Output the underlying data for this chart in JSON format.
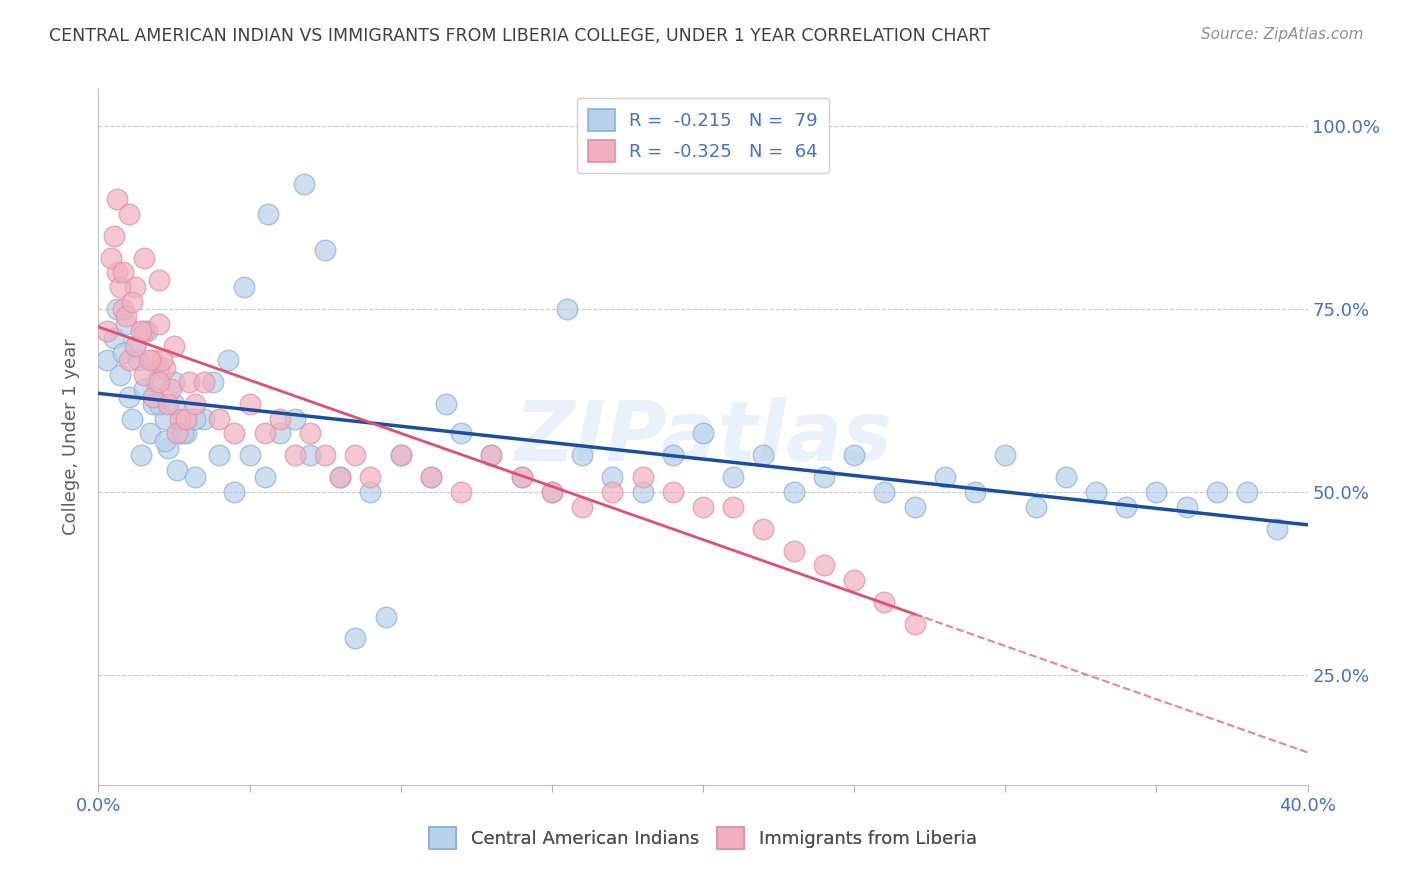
{
  "title": "CENTRAL AMERICAN INDIAN VS IMMIGRANTS FROM LIBERIA COLLEGE, UNDER 1 YEAR CORRELATION CHART",
  "source": "Source: ZipAtlas.com",
  "legend_label1": "Central American Indians",
  "legend_label2": "Immigrants from Liberia",
  "R1": -0.215,
  "N1": 79,
  "R2": -0.325,
  "N2": 64,
  "color_blue_fill": "#b8d0ea",
  "color_blue_edge": "#8ab0d8",
  "color_pink_fill": "#f0b0c0",
  "color_pink_edge": "#e090a8",
  "color_blue_line": "#1a4fa0",
  "color_pink_line": "#e05070",
  "watermark": "ZIPatlas",
  "xlim": [
    0.0,
    0.4
  ],
  "ylim": [
    0.1,
    1.05
  ],
  "background_color": "#ffffff",
  "grid_color": "#c8c8d8",
  "title_color": "#404040",
  "axis_label_color": "#4472c4",
  "ylabel": "College, Under 1 year",
  "blue_points_x": [
    0.003,
    0.007,
    0.01,
    0.012,
    0.015,
    0.018,
    0.02,
    0.022,
    0.025,
    0.027,
    0.005,
    0.008,
    0.011,
    0.014,
    0.017,
    0.02,
    0.023,
    0.026,
    0.029,
    0.032,
    0.035,
    0.04,
    0.045,
    0.05,
    0.055,
    0.06,
    0.065,
    0.07,
    0.08,
    0.09,
    0.1,
    0.11,
    0.12,
    0.13,
    0.14,
    0.15,
    0.16,
    0.17,
    0.18,
    0.19,
    0.2,
    0.21,
    0.22,
    0.23,
    0.24,
    0.25,
    0.26,
    0.27,
    0.28,
    0.29,
    0.3,
    0.31,
    0.32,
    0.33,
    0.34,
    0.35,
    0.36,
    0.37,
    0.38,
    0.39,
    0.006,
    0.009,
    0.013,
    0.016,
    0.019,
    0.022,
    0.025,
    0.028,
    0.032,
    0.038,
    0.043,
    0.048,
    0.056,
    0.068,
    0.075,
    0.085,
    0.095,
    0.115,
    0.155
  ],
  "blue_points_y": [
    0.68,
    0.66,
    0.63,
    0.7,
    0.64,
    0.62,
    0.67,
    0.6,
    0.65,
    0.58,
    0.71,
    0.69,
    0.6,
    0.55,
    0.58,
    0.62,
    0.56,
    0.53,
    0.58,
    0.52,
    0.6,
    0.55,
    0.5,
    0.55,
    0.52,
    0.58,
    0.6,
    0.55,
    0.52,
    0.5,
    0.55,
    0.52,
    0.58,
    0.55,
    0.52,
    0.5,
    0.55,
    0.52,
    0.5,
    0.55,
    0.58,
    0.52,
    0.55,
    0.5,
    0.52,
    0.55,
    0.5,
    0.48,
    0.52,
    0.5,
    0.55,
    0.48,
    0.52,
    0.5,
    0.48,
    0.5,
    0.48,
    0.5,
    0.5,
    0.45,
    0.75,
    0.73,
    0.68,
    0.72,
    0.65,
    0.57,
    0.62,
    0.58,
    0.6,
    0.65,
    0.68,
    0.78,
    0.88,
    0.92,
    0.83,
    0.3,
    0.33,
    0.62,
    0.75
  ],
  "pink_points_x": [
    0.003,
    0.006,
    0.008,
    0.01,
    0.012,
    0.015,
    0.018,
    0.02,
    0.022,
    0.025,
    0.004,
    0.007,
    0.009,
    0.012,
    0.015,
    0.018,
    0.021,
    0.024,
    0.027,
    0.03,
    0.005,
    0.008,
    0.011,
    0.014,
    0.017,
    0.02,
    0.023,
    0.026,
    0.029,
    0.032,
    0.035,
    0.04,
    0.045,
    0.05,
    0.055,
    0.06,
    0.065,
    0.07,
    0.075,
    0.08,
    0.085,
    0.09,
    0.1,
    0.11,
    0.12,
    0.13,
    0.14,
    0.15,
    0.16,
    0.17,
    0.18,
    0.19,
    0.2,
    0.21,
    0.22,
    0.23,
    0.24,
    0.25,
    0.26,
    0.27,
    0.006,
    0.01,
    0.015,
    0.02
  ],
  "pink_points_y": [
    0.72,
    0.8,
    0.75,
    0.68,
    0.78,
    0.72,
    0.68,
    0.73,
    0.67,
    0.7,
    0.82,
    0.78,
    0.74,
    0.7,
    0.66,
    0.63,
    0.68,
    0.64,
    0.6,
    0.65,
    0.85,
    0.8,
    0.76,
    0.72,
    0.68,
    0.65,
    0.62,
    0.58,
    0.6,
    0.62,
    0.65,
    0.6,
    0.58,
    0.62,
    0.58,
    0.6,
    0.55,
    0.58,
    0.55,
    0.52,
    0.55,
    0.52,
    0.55,
    0.52,
    0.5,
    0.55,
    0.52,
    0.5,
    0.48,
    0.5,
    0.52,
    0.5,
    0.48,
    0.48,
    0.45,
    0.42,
    0.4,
    0.38,
    0.35,
    0.32,
    0.9,
    0.88,
    0.82,
    0.79
  ]
}
